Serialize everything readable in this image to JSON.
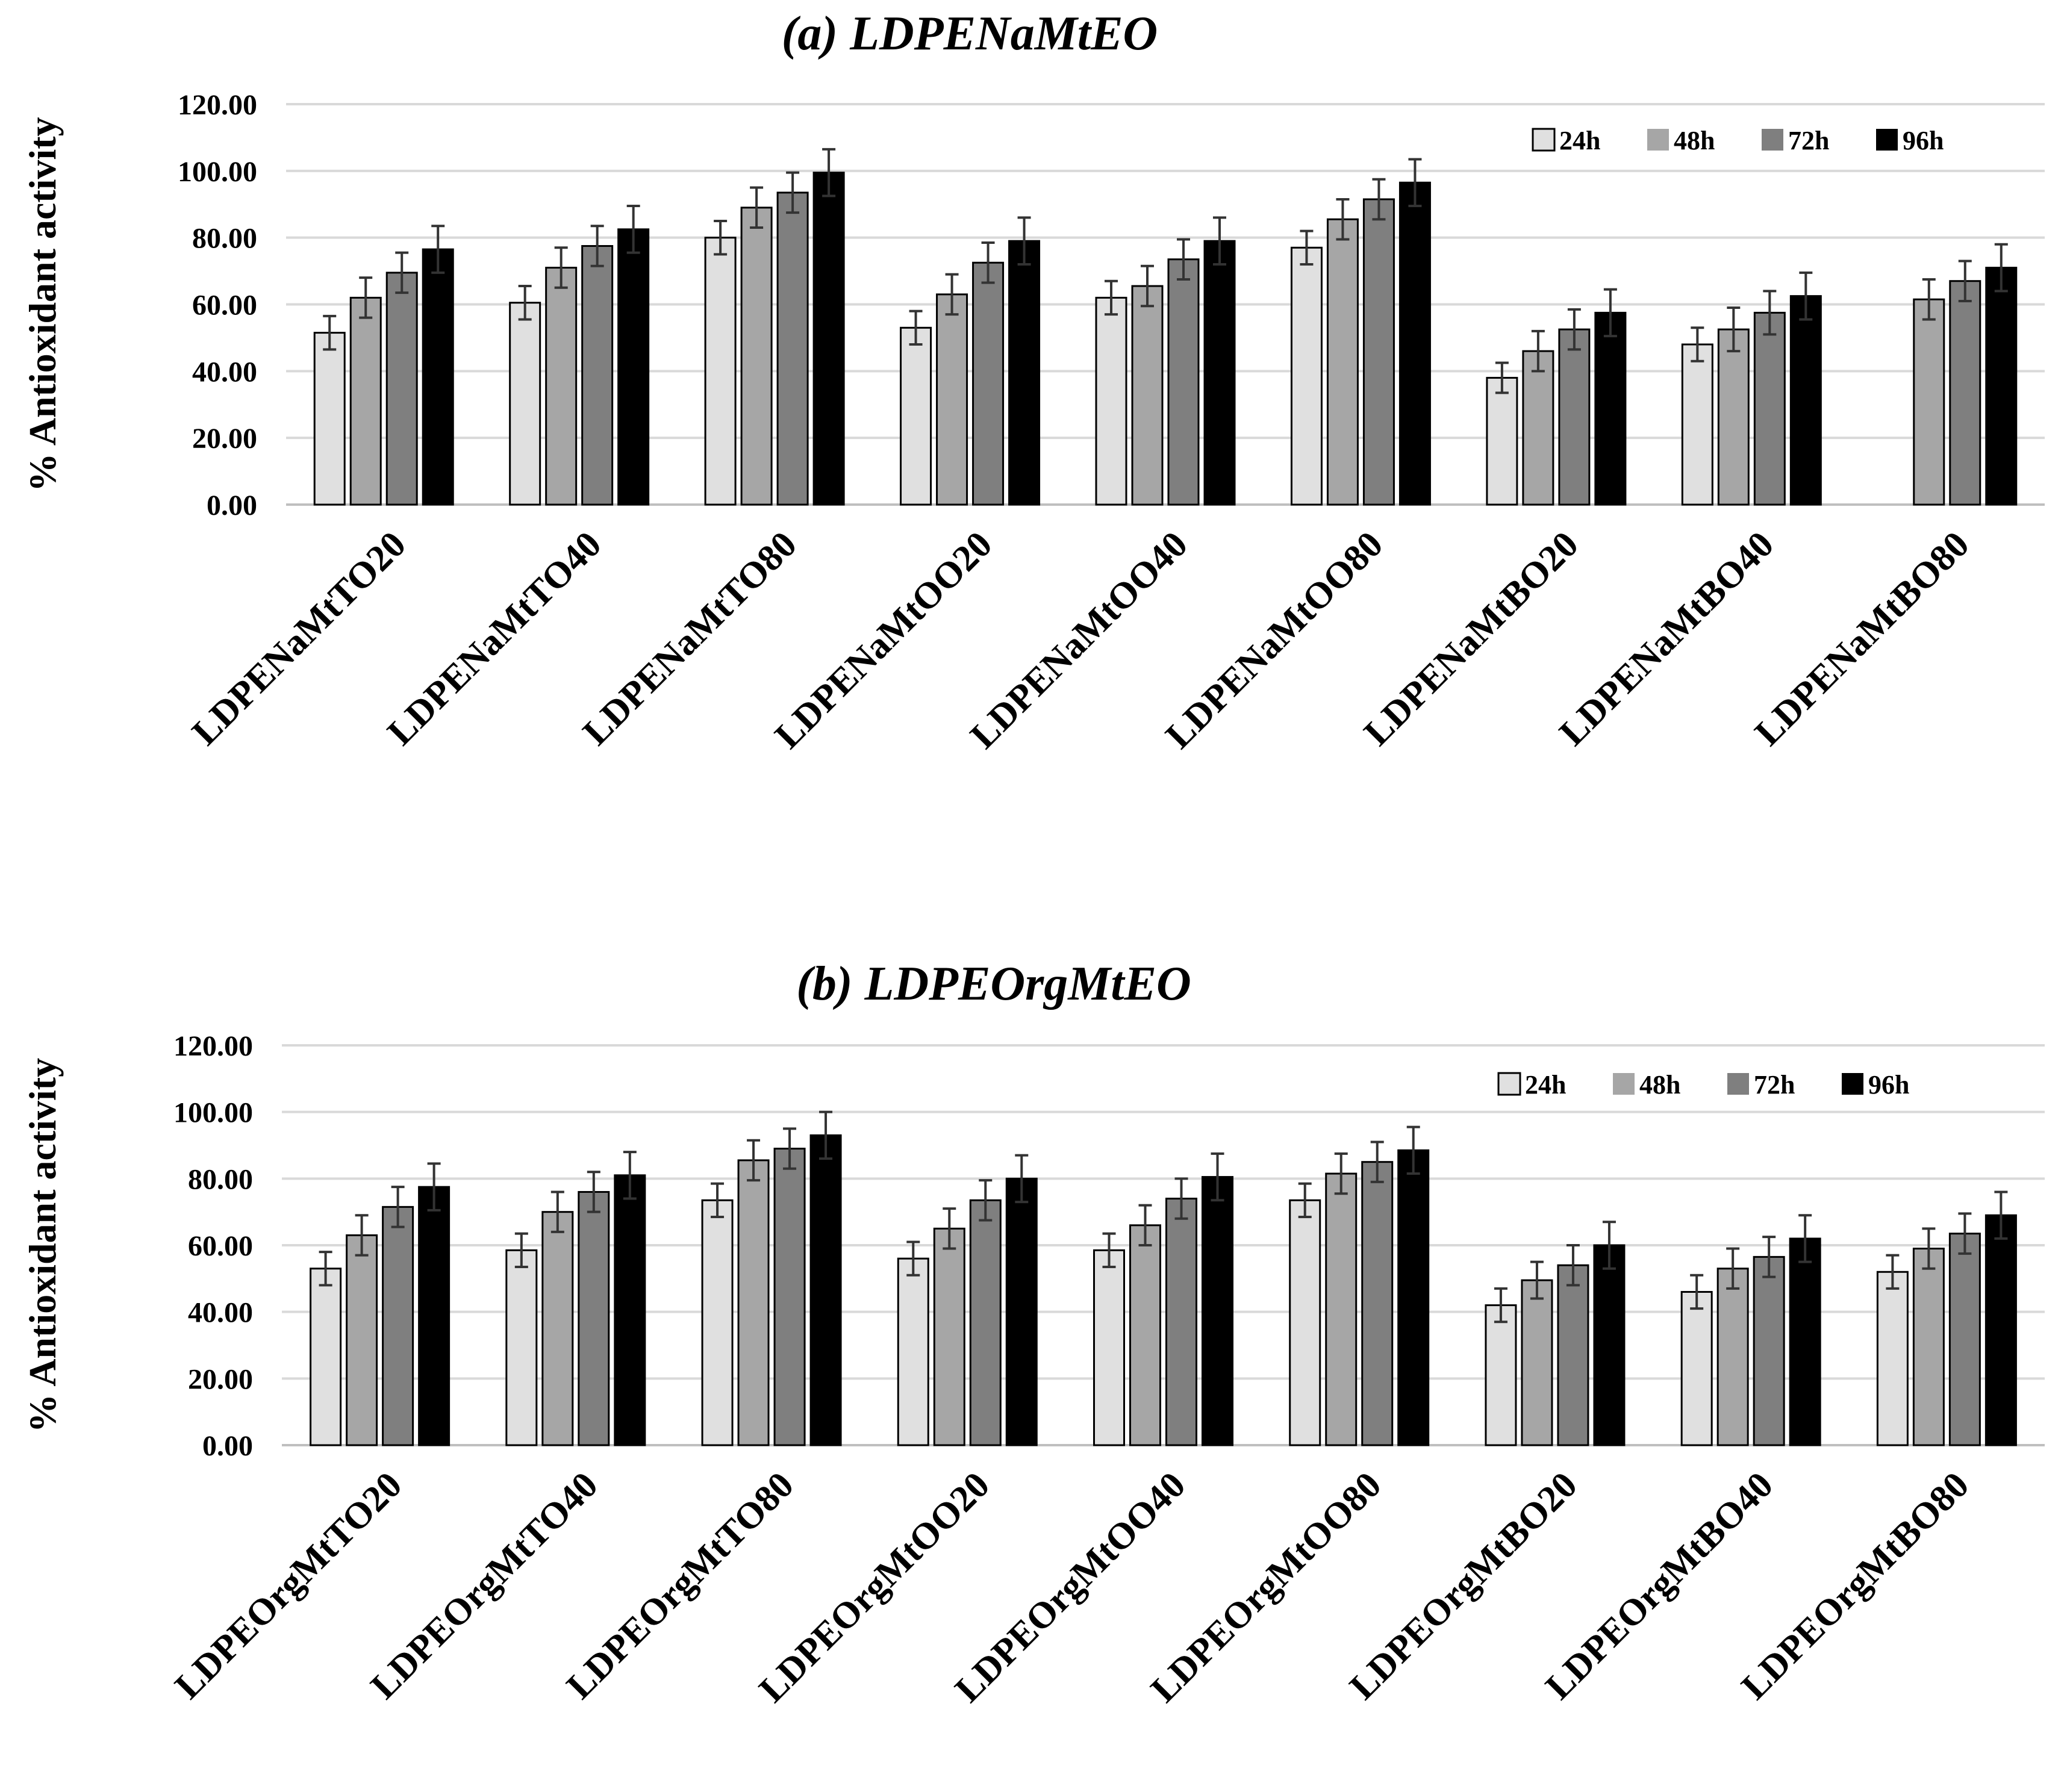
{
  "chart_data": [
    {
      "type": "bar",
      "title": "(a) LDPENaMtEO",
      "ylabel": "% Antioxidant activity",
      "xlabel": "",
      "ylim": [
        0,
        120
      ],
      "yticks": [
        "0.00",
        "20.00",
        "40.00",
        "60.00",
        "80.00",
        "100.00",
        "120.00"
      ],
      "grid": true,
      "legend_position": "top-right",
      "categories": [
        "LDPENaMtTO20",
        "LDPENaMtTO40",
        "LDPENaMtTO80",
        "LDPENaMtOO20",
        "LDPENaMtOO40",
        "LDPENaMtOO80",
        "LDPENaMtBO20",
        "LDPENaMtBO40",
        "LDPENaMtBO80"
      ],
      "series": [
        {
          "name": "24h",
          "color": "#e0e0e0",
          "values": [
            51.5,
            60.5,
            80,
            53,
            62,
            77,
            38,
            48,
            null
          ],
          "errors": [
            5,
            5,
            5,
            5,
            5,
            5,
            4.5,
            5,
            null
          ]
        },
        {
          "name": "48h",
          "color": "#a6a6a6",
          "values": [
            62,
            71,
            89,
            63,
            65.5,
            85.5,
            46,
            52.5,
            61.5
          ],
          "errors": [
            6,
            6,
            6,
            6,
            6,
            6,
            6,
            6.5,
            6
          ]
        },
        {
          "name": "72h",
          "color": "#7f7f7f",
          "values": [
            69.5,
            77.5,
            93.5,
            72.5,
            73.5,
            91.5,
            52.5,
            57.5,
            67
          ],
          "errors": [
            6,
            6,
            6,
            6,
            6,
            6,
            6,
            6.5,
            6
          ]
        },
        {
          "name": "96h",
          "color": "#000000",
          "values": [
            76.5,
            82.5,
            99.5,
            79,
            79,
            96.5,
            57.5,
            62.5,
            71
          ],
          "errors": [
            7,
            7,
            7,
            7,
            7,
            7,
            7,
            7,
            7
          ]
        }
      ]
    },
    {
      "type": "bar",
      "title": "(b) LDPEOrgMtEO",
      "ylabel": "% Antioxidant activity",
      "xlabel": "",
      "ylim": [
        0,
        120
      ],
      "yticks": [
        "0.00",
        "20.00",
        "40.00",
        "60.00",
        "80.00",
        "100.00",
        "120.00"
      ],
      "grid": true,
      "legend_position": "top-right",
      "categories": [
        "LDPEOrgMtTO20",
        "LDPEOrgMtTO40",
        "LDPEOrgMtTO80",
        "LDPEOrgMtOO20",
        "LDPEOrgMtOO40",
        "LDPEOrgMtOO80",
        "LDPEOrgMtBO20",
        "LDPEOrgMtBO40",
        "LDPEOrgMtBO80"
      ],
      "series": [
        {
          "name": "24h",
          "color": "#e0e0e0",
          "values": [
            53,
            58.5,
            73.5,
            56,
            58.5,
            73.5,
            42,
            46,
            52
          ],
          "errors": [
            5,
            5,
            5,
            5,
            5,
            5,
            5,
            5,
            5
          ]
        },
        {
          "name": "48h",
          "color": "#a6a6a6",
          "values": [
            63,
            70,
            85.5,
            65,
            66,
            81.5,
            49.5,
            53,
            59
          ],
          "errors": [
            6,
            6,
            6,
            6,
            6,
            6,
            5.5,
            6,
            6
          ]
        },
        {
          "name": "72h",
          "color": "#7f7f7f",
          "values": [
            71.5,
            76,
            89,
            73.5,
            74,
            85,
            54,
            56.5,
            63.5
          ],
          "errors": [
            6,
            6,
            6,
            6,
            6,
            6,
            6,
            6,
            6
          ]
        },
        {
          "name": "96h",
          "color": "#000000",
          "values": [
            77.5,
            81,
            93,
            80,
            80.5,
            88.5,
            60,
            62,
            69
          ],
          "errors": [
            7,
            7,
            7,
            7,
            7,
            7,
            7,
            7,
            7
          ]
        }
      ]
    }
  ]
}
